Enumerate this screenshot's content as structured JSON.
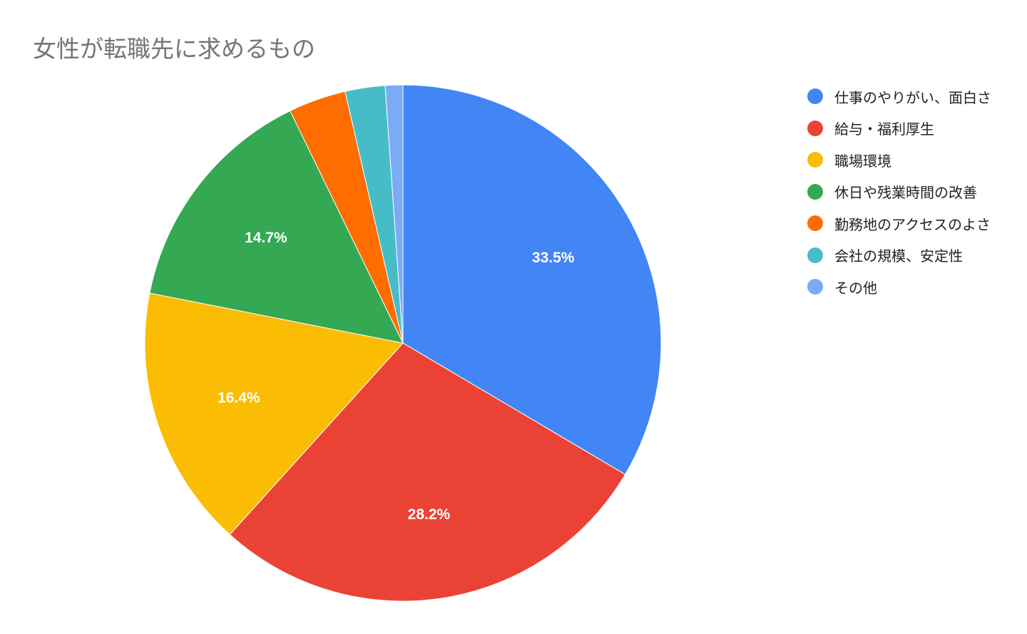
{
  "chart_data": {
    "type": "pie",
    "title": "女性が転職先に求めるもの",
    "slices": [
      {
        "label": "仕事のやりがい、面白さ",
        "value": 33.5,
        "color": "#4285F4",
        "display": "33.5%"
      },
      {
        "label": "給与・福利厚生",
        "value": 28.2,
        "color": "#EA4335",
        "display": "28.2%"
      },
      {
        "label": "職場環境",
        "value": 16.4,
        "color": "#FBBC04",
        "display": "16.4%"
      },
      {
        "label": "休日や残業時間の改善",
        "value": 14.7,
        "color": "#34A853",
        "display": "14.7%"
      },
      {
        "label": "勤務地のアクセスのよさ",
        "value": 3.6,
        "color": "#FF6D01",
        "display": ""
      },
      {
        "label": "会社の規模、安定性",
        "value": 2.5,
        "color": "#46BDC6",
        "display": ""
      },
      {
        "label": "その他",
        "value": 1.1,
        "color": "#7BAAF7",
        "display": ""
      }
    ],
    "legend_position": "right",
    "start": "top",
    "direction": "clockwise"
  }
}
